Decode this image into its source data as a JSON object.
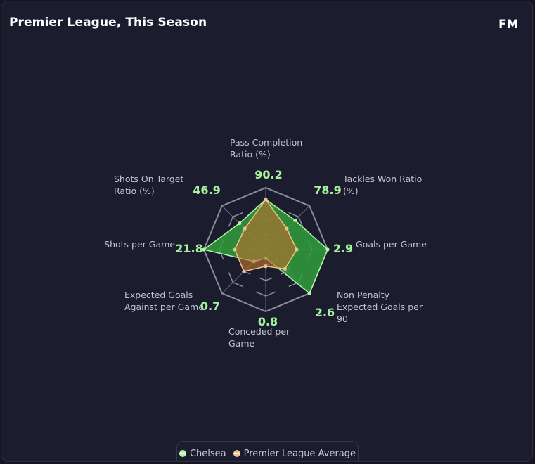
{
  "header": {
    "title": "Premier League, This Season",
    "logo_text": "FM"
  },
  "colors": {
    "background": "#1b1d2f",
    "grid": "#8a8c9e",
    "series_a_fill": "#2f9d3a",
    "series_a_stroke": "#b6f3a8",
    "series_b_fill": "#b7702e",
    "series_b_stroke": "#f0c08c",
    "value_text": "#a6f29c",
    "label_text": "#c3c4d0"
  },
  "chart_data": {
    "type": "radar",
    "axes": [
      {
        "label": [
          "Pass Completion",
          "Ratio (%)"
        ],
        "value_label": "90.2"
      },
      {
        "label": [
          "Tackles Won Ratio",
          "(%)"
        ],
        "value_label": "78.9"
      },
      {
        "label": [
          "Goals per Game"
        ],
        "value_label": "2.9"
      },
      {
        "label": [
          "Non Penalty",
          "Expected Goals per",
          "90"
        ],
        "value_label": "2.6"
      },
      {
        "label": [
          "Conceded per",
          "Game"
        ],
        "value_label": "0.8"
      },
      {
        "label": [
          "Expected Goals",
          "Against per Game"
        ],
        "value_label": "0.7"
      },
      {
        "label": [
          "Shots per Game"
        ],
        "value_label": "21.8"
      },
      {
        "label": [
          "Shots On Target",
          "Ratio (%)"
        ],
        "value_label": "46.9"
      }
    ],
    "rings": 4,
    "series": [
      {
        "name": "Chelsea",
        "normalized": [
          0.81,
          0.67,
          1.0,
          1.0,
          0.14,
          0.27,
          1.0,
          0.6
        ]
      },
      {
        "name": "Premier League Average",
        "normalized": [
          0.81,
          0.48,
          0.5,
          0.44,
          0.27,
          0.5,
          0.5,
          0.48
        ]
      }
    ]
  },
  "legend": {
    "items": [
      {
        "label": "Chelsea",
        "color": "#b6f3a8"
      },
      {
        "label": "Premier League Average",
        "color": "#f0c08c"
      }
    ]
  }
}
